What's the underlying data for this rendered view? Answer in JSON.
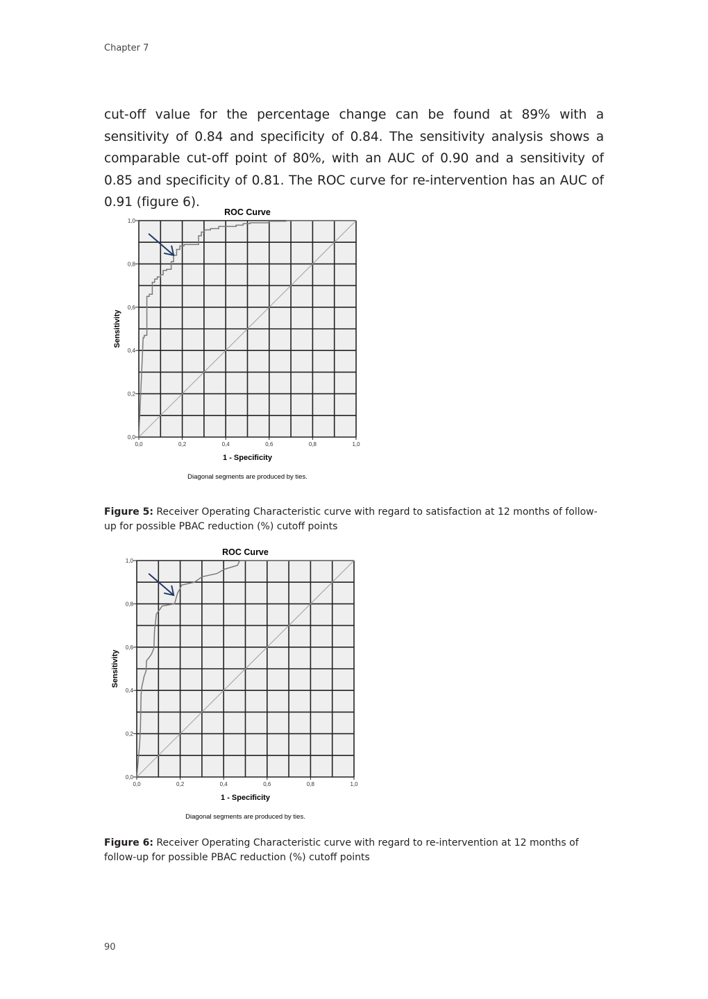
{
  "header": {
    "chapter": "Chapter 7"
  },
  "body": {
    "paragraph": "cut-off value for the percentage change can be found at 89% with a sensitivity of 0.84 and specificity of 0.84. The sensitivity analysis shows a comparable cut-off point of 80%, with an AUC of 0.90 and a sensitivity of 0.85 and specificity of 0.81. The ROC curve for re-intervention has an AUC of 0.91 (figure 6)."
  },
  "figures": [
    {
      "label": "Figure 5:",
      "caption": " Receiver Operating Characteristic curve with regard to satisfaction at 12 months of follow-up for possible PBAC reduction (%) cutoff points"
    },
    {
      "label": "Figure 6:",
      "caption": " Receiver Operating Characteristic curve with regard to re-intervention at 12 months of follow-up for possible PBAC reduction (%) cutoff points"
    }
  ],
  "page_number": "90",
  "chart_data": [
    {
      "type": "line",
      "title": "ROC Curve",
      "xlabel": "1 - Specificity",
      "ylabel": "Sensitivity",
      "note": "Diagonal segments are produced by ties.",
      "xlim": [
        0,
        1
      ],
      "ylim": [
        0,
        1
      ],
      "xticks": [
        "0,0",
        "0,2",
        "0,4",
        "0,6",
        "0,8",
        "1,0"
      ],
      "yticks": [
        "0,0",
        "0,2",
        "0,4",
        "0,6",
        "0,8",
        "1,0"
      ],
      "grid": true,
      "reference_line": "diagonal",
      "arrow_at": [
        0.16,
        0.84
      ],
      "colors": {
        "curve": "#7a7a7a",
        "reference": "#aaaaaa",
        "arrow": "#1f3a6b",
        "background": "#efefef",
        "grid": "#222222"
      },
      "x": [
        0,
        0.02,
        0.025,
        0.025,
        0.037,
        0.037,
        0.048,
        0.048,
        0.062,
        0.062,
        0.073,
        0.073,
        0.085,
        0.085,
        0.099,
        0.099,
        0.112,
        0.112,
        0.128,
        0.128,
        0.149,
        0.149,
        0.16,
        0.16,
        0.174,
        0.174,
        0.189,
        0.189,
        0.208,
        0.208,
        0.275,
        0.275,
        0.288,
        0.288,
        0.302,
        0.302,
        0.33,
        0.33,
        0.368,
        0.368,
        0.448,
        0.448,
        0.48,
        0.48,
        0.512,
        0.512,
        0.598,
        0.598,
        0.678,
        0.678,
        1.0
      ],
      "y": [
        0,
        0.46,
        0.46,
        0.47,
        0.47,
        0.65,
        0.65,
        0.66,
        0.66,
        0.715,
        0.715,
        0.73,
        0.73,
        0.74,
        0.74,
        0.75,
        0.75,
        0.77,
        0.77,
        0.775,
        0.775,
        0.81,
        0.81,
        0.84,
        0.84,
        0.867,
        0.867,
        0.883,
        0.883,
        0.89,
        0.89,
        0.93,
        0.93,
        0.947,
        0.947,
        0.957,
        0.957,
        0.963,
        0.963,
        0.973,
        0.973,
        0.979,
        0.979,
        0.986,
        0.986,
        0.99,
        0.99,
        0.997,
        0.997,
        1.0,
        1.0
      ]
    },
    {
      "type": "line",
      "title": "ROC Curve",
      "xlabel": "1 - Specificity",
      "ylabel": "Sensitivity",
      "note": "Diagonal segments are produced by ties.",
      "xlim": [
        0,
        1
      ],
      "ylim": [
        0,
        1
      ],
      "xticks": [
        "0,0",
        "0,2",
        "0,4",
        "0,6",
        "0,8",
        "1,0"
      ],
      "yticks": [
        "0,0",
        "0,2",
        "0,4",
        "0,6",
        "0,8",
        "1,0"
      ],
      "grid": true,
      "reference_line": "diagonal",
      "arrow_at": [
        0.17,
        0.84
      ],
      "colors": {
        "curve": "#7a7a7a",
        "reference": "#aaaaaa",
        "arrow": "#1f3a6b",
        "background": "#efefef",
        "grid": "#222222"
      },
      "x": [
        0,
        0.005,
        0.005,
        0.013,
        0.013,
        0.017,
        0.017,
        0.02,
        0.02,
        0.023,
        0.023,
        0.034,
        0.034,
        0.043,
        0.043,
        0.045,
        0.045,
        0.057,
        0.057,
        0.068,
        0.068,
        0.079,
        0.079,
        0.082,
        0.082,
        0.087,
        0.087,
        0.09,
        0.09,
        0.103,
        0.103,
        0.117,
        0.117,
        0.174,
        0.174,
        0.188,
        0.188,
        0.199,
        0.199,
        0.207,
        0.207,
        0.266,
        0.266,
        0.3,
        0.3,
        0.369,
        0.369,
        0.404,
        0.404,
        0.464,
        0.464,
        0.474,
        0.474,
        1.0
      ],
      "y": [
        0,
        0.057,
        0.057,
        0.146,
        0.146,
        0.225,
        0.225,
        0.38,
        0.38,
        0.414,
        0.414,
        0.465,
        0.465,
        0.49,
        0.49,
        0.537,
        0.537,
        0.552,
        0.552,
        0.568,
        0.568,
        0.595,
        0.595,
        0.68,
        0.68,
        0.72,
        0.72,
        0.752,
        0.752,
        0.77,
        0.77,
        0.79,
        0.79,
        0.8,
        0.8,
        0.85,
        0.85,
        0.87,
        0.87,
        0.887,
        0.887,
        0.9,
        0.9,
        0.925,
        0.925,
        0.94,
        0.94,
        0.96,
        0.96,
        0.978,
        0.978,
        1.0,
        1.0,
        1.0
      ]
    }
  ]
}
